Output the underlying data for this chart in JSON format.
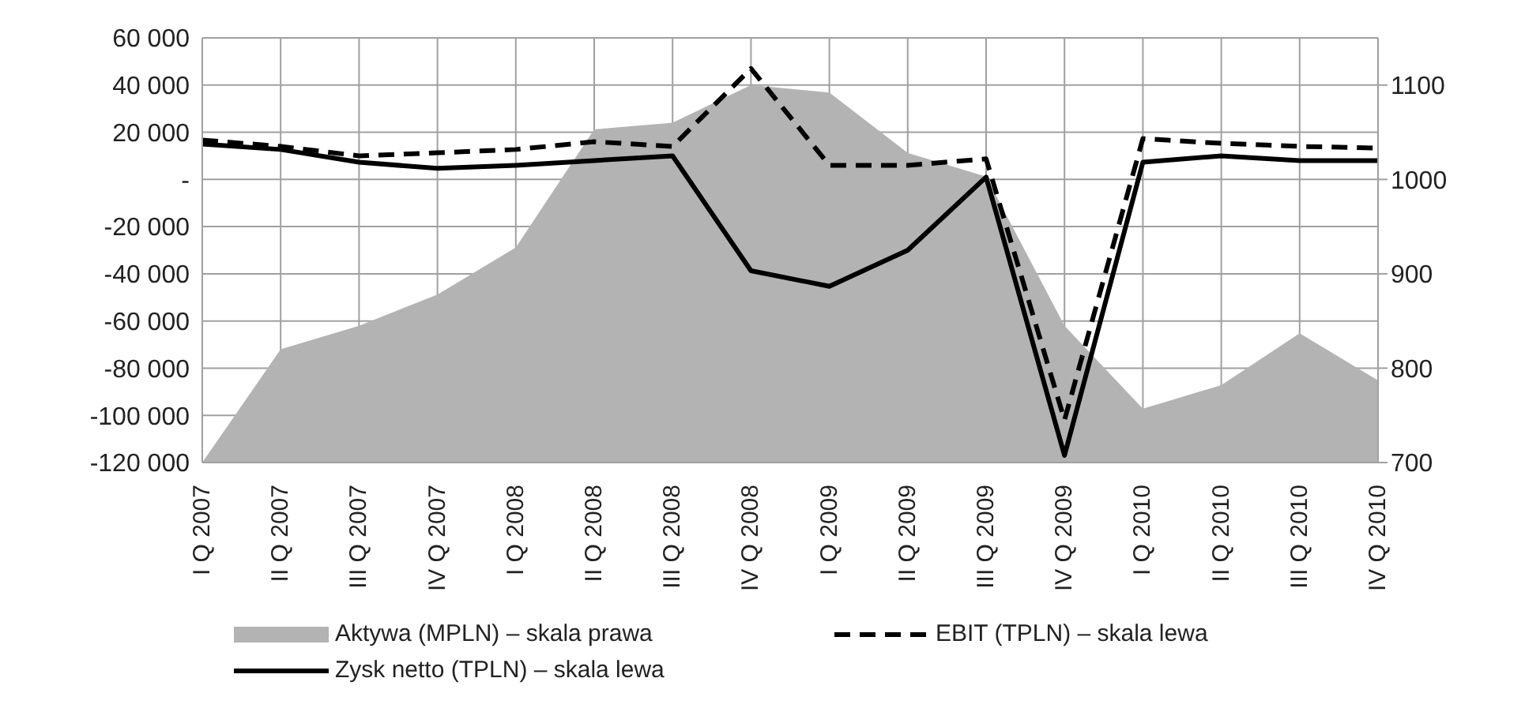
{
  "chart_data": {
    "type": "line",
    "categories": [
      "I Q 2007",
      "II Q 2007",
      "III Q 2007",
      "IV Q 2007",
      "I Q 2008",
      "II Q 2008",
      "III Q 2008",
      "IV Q 2008",
      "I Q 2009",
      "II Q 2009",
      "III Q 2009",
      "IV Q 2009",
      "I Q 2010",
      "II Q 2010",
      "III Q 2010",
      "IV Q 2010"
    ],
    "series": [
      {
        "name": "Aktywa (MPLN) – skala prawa",
        "type": "area",
        "axis": "y2",
        "color": "#b3b3b3",
        "values": [
          700,
          820,
          845,
          878,
          928,
          1053,
          1060,
          1100,
          1092,
          1028,
          1003,
          845,
          757,
          782,
          837,
          787
        ]
      },
      {
        "name": "EBIT (TPLN) – skala lewa",
        "line_style": "dashed",
        "color": "#000000",
        "values": [
          16700,
          14000,
          10000,
          11300,
          12700,
          16000,
          14000,
          47000,
          6000,
          6000,
          8700,
          -102000,
          17300,
          15300,
          14000,
          13300
        ]
      },
      {
        "name": "Zysk netto (TPLN) – skala lewa",
        "line_style": "solid",
        "color": "#000000",
        "values": [
          15000,
          12700,
          7300,
          4700,
          6000,
          8000,
          10000,
          -38700,
          -45300,
          -30000,
          1000,
          -117000,
          7300,
          10000,
          8000,
          8000
        ]
      }
    ],
    "ylim": [
      -120000,
      60000
    ],
    "yticks": [
      {
        "value": -120000,
        "label": "-120 000"
      },
      {
        "value": -100000,
        "label": "-100 000"
      },
      {
        "value": -80000,
        "label": "-80 000"
      },
      {
        "value": -60000,
        "label": "-60 000"
      },
      {
        "value": -40000,
        "label": "-40 000"
      },
      {
        "value": -20000,
        "label": "-20 000"
      },
      {
        "value": 0,
        "label": "-"
      },
      {
        "value": 20000,
        "label": "20 000"
      },
      {
        "value": 40000,
        "label": "40 000"
      },
      {
        "value": 60000,
        "label": "60 000"
      }
    ],
    "y2lim": [
      700,
      1150
    ],
    "y2ticks": [
      700,
      800,
      900,
      1000,
      1100
    ],
    "grid": true,
    "legend": "bottom",
    "marker": "none"
  }
}
